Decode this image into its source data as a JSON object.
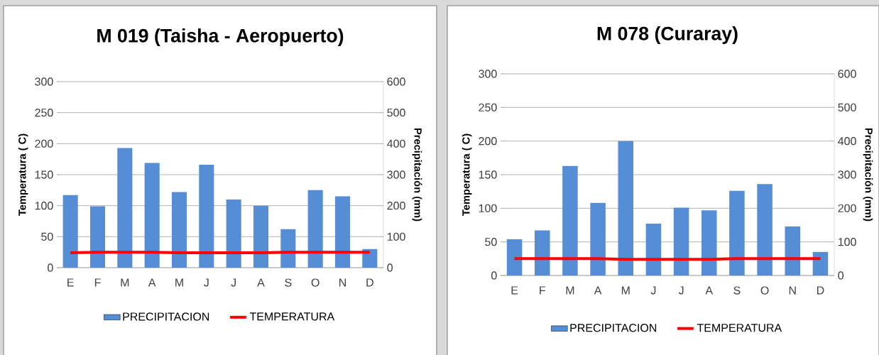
{
  "chart_data": [
    {
      "type": "bar",
      "title": "M 019    (Taisha - Aeropuerto)",
      "categories": [
        "E",
        "F",
        "M",
        "A",
        "M",
        "J",
        "J",
        "A",
        "S",
        "O",
        "N",
        "D"
      ],
      "ylabel": "Temperatura ( C)",
      "y2label": "Precipitación (mm)",
      "ylim": [
        0,
        300
      ],
      "yticks": [
        0,
        50,
        100,
        150,
        200,
        250,
        300
      ],
      "y2lim": [
        0,
        600
      ],
      "y2ticks": [
        0,
        100,
        200,
        300,
        400,
        500,
        600
      ],
      "grid": "y",
      "legend": "bottom",
      "series": [
        {
          "name": "PRECIPITACION",
          "axis": "y2",
          "color": "#558ed5",
          "values": [
            234,
            198,
            386,
            338,
            244,
            332,
            220,
            200,
            124,
            250,
            230,
            60
          ]
        },
        {
          "name": "TEMPERATURA",
          "type": "line",
          "axis": "y",
          "color": "#ff0000",
          "values": [
            24,
            25,
            25,
            25,
            24,
            24,
            24,
            24,
            25,
            25,
            25,
            25
          ]
        }
      ]
    },
    {
      "type": "bar",
      "title": "M 078    (Curaray)",
      "categories": [
        "E",
        "F",
        "M",
        "A",
        "M",
        "J",
        "J",
        "A",
        "S",
        "O",
        "N",
        "D"
      ],
      "ylabel": "Temperatura ( C)",
      "y2label": "Precipitación (mm)",
      "ylim": [
        0,
        300
      ],
      "yticks": [
        0,
        50,
        100,
        150,
        200,
        250,
        300
      ],
      "y2lim": [
        0,
        600
      ],
      "y2ticks": [
        0,
        100,
        200,
        300,
        400,
        500,
        600
      ],
      "grid": "y",
      "legend": "bottom",
      "series": [
        {
          "name": "PRECIPITACION",
          "axis": "y2",
          "color": "#558ed5",
          "values": [
            108,
            134,
            326,
            216,
            400,
            154,
            202,
            194,
            252,
            272,
            146,
            70
          ]
        },
        {
          "name": "TEMPERATURA",
          "type": "line",
          "axis": "y",
          "color": "#ff0000",
          "values": [
            25,
            25,
            25,
            25,
            24,
            24,
            24,
            24,
            25,
            25,
            25,
            25
          ]
        }
      ]
    }
  ]
}
